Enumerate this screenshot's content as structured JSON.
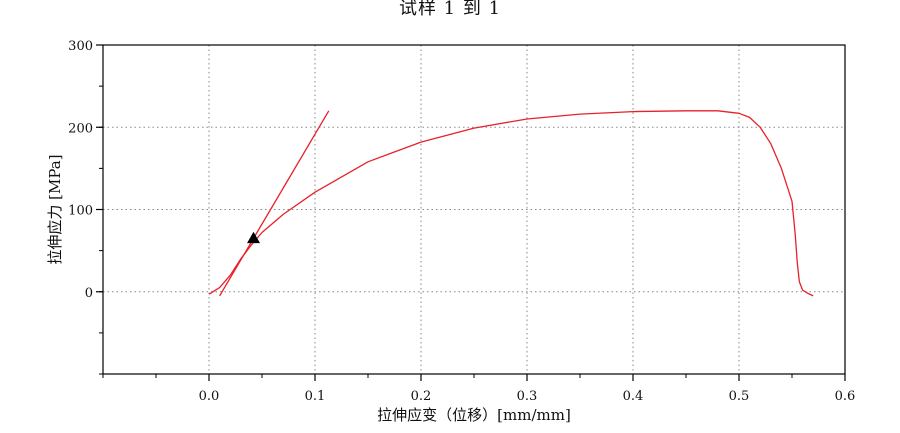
{
  "chart_data": {
    "type": "line",
    "title": "试样 1 到 1",
    "xlabel": "拉伸应变（位移）[mm/mm]",
    "ylabel": "拉伸应力 [MPa]",
    "xlim": [
      -0.1,
      0.6
    ],
    "ylim": [
      -100,
      300
    ],
    "x_ticks": [
      "0.0",
      "0.1",
      "0.2",
      "0.3",
      "0.4",
      "0.5",
      "0.6"
    ],
    "y_ticks": [
      "0",
      "100",
      "200",
      "300"
    ],
    "grid": true,
    "legend": false,
    "colors": {
      "curve": "#e8202a",
      "marker": "#000000",
      "axis": "#000000",
      "grid": "#888888"
    },
    "series": [
      {
        "type": "stress-strain curve",
        "x": [
          0.0,
          0.01,
          0.02,
          0.03,
          0.04,
          0.05,
          0.07,
          0.1,
          0.15,
          0.2,
          0.25,
          0.3,
          0.35,
          0.4,
          0.45,
          0.48,
          0.5,
          0.51,
          0.52,
          0.53,
          0.54,
          0.55,
          0.553,
          0.555,
          0.557,
          0.56,
          0.565,
          0.57
        ],
        "y": [
          -3,
          5,
          20,
          40,
          57,
          72,
          94,
          121,
          158,
          182,
          199,
          210,
          216,
          219,
          220,
          220,
          217,
          212,
          200,
          180,
          150,
          110,
          70,
          35,
          12,
          2,
          -2,
          -5
        ]
      },
      {
        "type": "modulus line",
        "x": [
          0.01,
          0.113
        ],
        "y": [
          -5,
          220
        ]
      }
    ],
    "markers": [
      {
        "shape": "triangle",
        "x": 0.042,
        "y": 65
      }
    ]
  }
}
